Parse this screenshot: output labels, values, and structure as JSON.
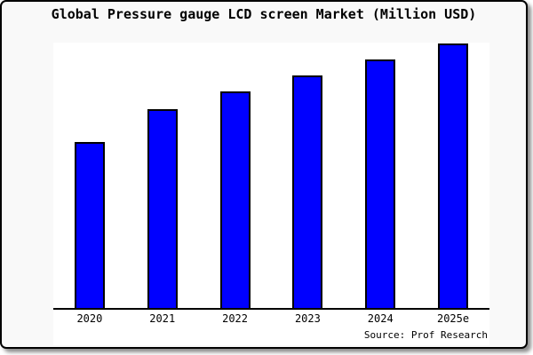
{
  "chart_data": {
    "type": "bar",
    "title": "Global Pressure gauge LCD screen Market (Million USD)",
    "categories": [
      "2020",
      "2021",
      "2022",
      "2023",
      "2024",
      "2025e"
    ],
    "values": [
      62.6,
      75.0,
      81.6,
      87.7,
      93.7,
      99.8
    ],
    "value_note": "y-axis has no tick labels in the image; values are estimated relative bar heights on a 0-100 scale",
    "xlabel": "",
    "ylabel": "",
    "ylim": [
      0,
      100
    ],
    "grid": false,
    "legend": null,
    "bar_color": "#0000ff",
    "bar_edge_color": "#000000",
    "plot_background": "#ffffff",
    "figure_background": "#f9f9f9",
    "source": "Source: Prof Research"
  }
}
